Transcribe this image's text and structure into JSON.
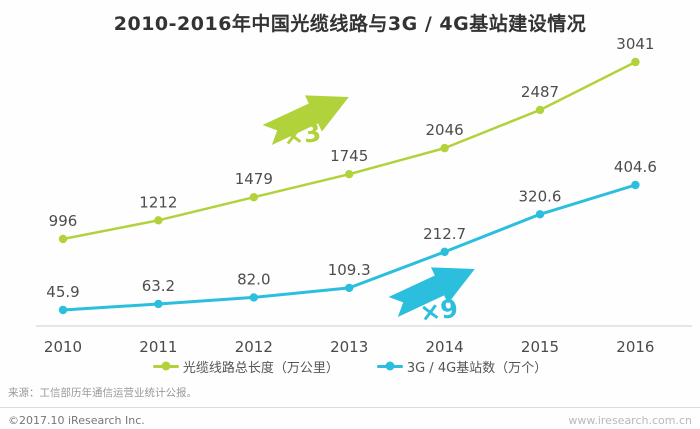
{
  "title": "2010-2016年中国光缆线路与3G / 4G基站建设情况",
  "chart_data": {
    "type": "line",
    "title": "2010-2016年中国光缆线路与3G / 4G基站建设情况",
    "categories": [
      "2010",
      "2011",
      "2012",
      "2013",
      "2014",
      "2015",
      "2016"
    ],
    "series": [
      {
        "name": "光缆线路总长度（万公里）",
        "values": [
          996,
          1212,
          1479,
          1745,
          2046,
          2487,
          3041
        ],
        "decimals": 0,
        "color": "#b2d23c"
      },
      {
        "name": "3G / 4G基站数（万个）",
        "values": [
          45.9,
          63.2,
          82.0,
          109.3,
          212.7,
          320.6,
          404.6
        ],
        "decimals": 1,
        "color": "#2bbfdd"
      }
    ],
    "annotations": [
      {
        "text": "×3",
        "series_index": 0
      },
      {
        "text": "×9",
        "series_index": 1
      }
    ],
    "xlabel": "",
    "ylabel": "",
    "grid": false,
    "data_labels": true,
    "legend_position": "bottom"
  },
  "footer": {
    "source": "来源：工信部历年通信运营业统计公报。",
    "copyright": "©2017.10 iResearch Inc.",
    "website": "www.iresearch.com.cn"
  }
}
